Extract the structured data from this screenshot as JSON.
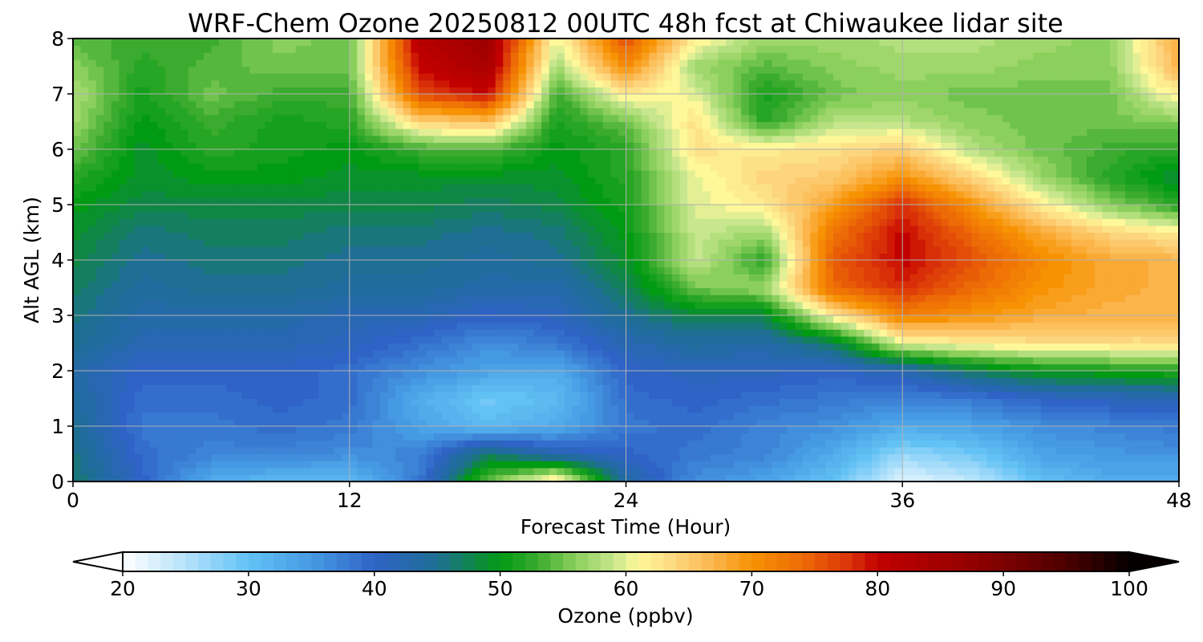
{
  "chart_data": {
    "type": "heatmap",
    "title": "WRF-Chem Ozone  20250812 00UTC 48h fcst at Chiwaukee lidar site",
    "xlabel": "Forecast Time (Hour)",
    "ylabel": "Alt AGL (km)",
    "xlim": [
      0,
      48
    ],
    "ylim": [
      0,
      8
    ],
    "xticks": [
      "0",
      "12",
      "24",
      "36",
      "48"
    ],
    "yticks": [
      "0",
      "1",
      "2",
      "3",
      "4",
      "5",
      "6",
      "7",
      "8"
    ],
    "grid": true,
    "x": [
      0,
      3,
      6,
      9,
      12,
      15,
      18,
      21,
      24,
      27,
      30,
      33,
      36,
      39,
      42,
      45,
      48
    ],
    "y": [
      0,
      0.5,
      1,
      1.5,
      2,
      2.5,
      3,
      3.5,
      4,
      4.5,
      5,
      5.5,
      6,
      6.5,
      7,
      7.5,
      8
    ],
    "z": [
      [
        47,
        40,
        33,
        31,
        31,
        38,
        55,
        64,
        44,
        36,
        34,
        30,
        22,
        24,
        30,
        33,
        32
      ],
      [
        46,
        39,
        37,
        37,
        36,
        37,
        47,
        42,
        40,
        38,
        37,
        33,
        27,
        29,
        34,
        35,
        36
      ],
      [
        45,
        38,
        38,
        39,
        38,
        34,
        31,
        33,
        38,
        39,
        37,
        36,
        33,
        34,
        36,
        37,
        38
      ],
      [
        44,
        39,
        39,
        40,
        39,
        33,
        29,
        31,
        39,
        40,
        39,
        38,
        37,
        38,
        40,
        41,
        42
      ],
      [
        43,
        40,
        40,
        40,
        39,
        36,
        34,
        33,
        40,
        41,
        41,
        40,
        42,
        47,
        50,
        51,
        52
      ],
      [
        45,
        42,
        42,
        42,
        41,
        39,
        36,
        38,
        42,
        44,
        43,
        47,
        60,
        62,
        63,
        63,
        63
      ],
      [
        46,
        43,
        43,
        43,
        42,
        42,
        40,
        41,
        45,
        48,
        48,
        62,
        72,
        70,
        68,
        67,
        67
      ],
      [
        47,
        44,
        45,
        45,
        44,
        44,
        43,
        43,
        47,
        55,
        57,
        74,
        78,
        74,
        70,
        68,
        67
      ],
      [
        48,
        45,
        46,
        46,
        45,
        45,
        44,
        45,
        49,
        59,
        52,
        75,
        80,
        76,
        71,
        68,
        67
      ],
      [
        49,
        46,
        47,
        47,
        46,
        46,
        45,
        46,
        50,
        59,
        57,
        73,
        80,
        74,
        68,
        64,
        62
      ],
      [
        50,
        48,
        48,
        48,
        48,
        48,
        47,
        48,
        51,
        60,
        62,
        69,
        78,
        70,
        62,
        56,
        52
      ],
      [
        52,
        49,
        50,
        50,
        49,
        49,
        49,
        49,
        52,
        60,
        64,
        65,
        70,
        64,
        57,
        52,
        48
      ],
      [
        55,
        49,
        52,
        51,
        50,
        53,
        54,
        50,
        52,
        63,
        62,
        63,
        65,
        58,
        55,
        53,
        52
      ],
      [
        57,
        50,
        53,
        51,
        52,
        64,
        66,
        51,
        55,
        63,
        52,
        58,
        58,
        56,
        55,
        55,
        56
      ],
      [
        58,
        51,
        55,
        53,
        53,
        76,
        80,
        53,
        62,
        60,
        51,
        55,
        56,
        55,
        55,
        55,
        62
      ],
      [
        56,
        52,
        54,
        55,
        55,
        80,
        84,
        57,
        71,
        57,
        54,
        56,
        57,
        57,
        56,
        56,
        67
      ],
      [
        54,
        53,
        53,
        56,
        55,
        82,
        86,
        60,
        76,
        62,
        57,
        57,
        58,
        58,
        57,
        56,
        68
      ]
    ],
    "colorbar": {
      "label": "Ozone  (ppbv)",
      "min": 20,
      "max": 100,
      "ticks": [
        "20",
        "30",
        "40",
        "50",
        "60",
        "70",
        "80",
        "90",
        "100"
      ],
      "extend": "both",
      "stops": [
        {
          "v": 20,
          "c": "#ffffff"
        },
        {
          "v": 25,
          "c": "#b5e2fb"
        },
        {
          "v": 30,
          "c": "#62c2f5"
        },
        {
          "v": 35,
          "c": "#469ae3"
        },
        {
          "v": 40,
          "c": "#2f63c6"
        },
        {
          "v": 45,
          "c": "#1e6e94"
        },
        {
          "v": 48,
          "c": "#0f8745"
        },
        {
          "v": 50,
          "c": "#019a13"
        },
        {
          "v": 53,
          "c": "#3aab2e"
        },
        {
          "v": 56,
          "c": "#8bd05c"
        },
        {
          "v": 59,
          "c": "#c7e68d"
        },
        {
          "v": 61,
          "c": "#fef89a"
        },
        {
          "v": 64,
          "c": "#fdd57e"
        },
        {
          "v": 67,
          "c": "#fbb54b"
        },
        {
          "v": 70,
          "c": "#f79203"
        },
        {
          "v": 74,
          "c": "#ed6b06"
        },
        {
          "v": 78,
          "c": "#d92f08"
        },
        {
          "v": 80,
          "c": "#c20000"
        },
        {
          "v": 88,
          "c": "#8f0000"
        },
        {
          "v": 95,
          "c": "#4c0000"
        },
        {
          "v": 100,
          "c": "#050000"
        }
      ]
    }
  }
}
